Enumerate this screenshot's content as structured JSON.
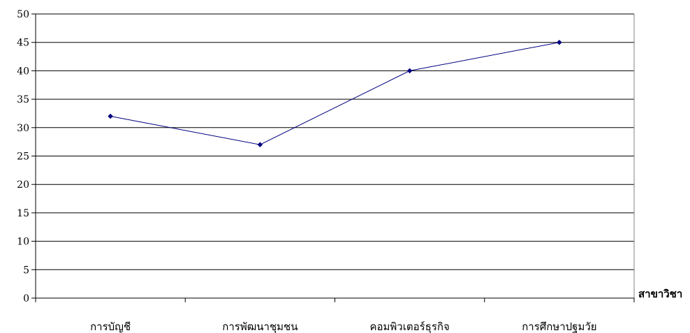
{
  "chart_data": {
    "type": "line",
    "categories": [
      "การบัญชี",
      "การพัฒนาชุมชน",
      "คอมพิวเตอร์ธุรกิจ",
      "การศึกษาปฐมวัย"
    ],
    "series": [
      {
        "values": [
          32,
          27,
          40,
          45
        ],
        "color": "#00007f"
      }
    ],
    "xlabel": "สาขาวิชา",
    "ylabel": "",
    "title": "",
    "ylim": [
      0,
      50
    ],
    "yticks": [
      0,
      5,
      10,
      15,
      20,
      25,
      30,
      35,
      40,
      45,
      50
    ],
    "grid": true,
    "legend": "none",
    "marker": "diamond",
    "colors": {
      "line": "#00007f",
      "grid": "#000000",
      "axis": "#000000"
    }
  }
}
